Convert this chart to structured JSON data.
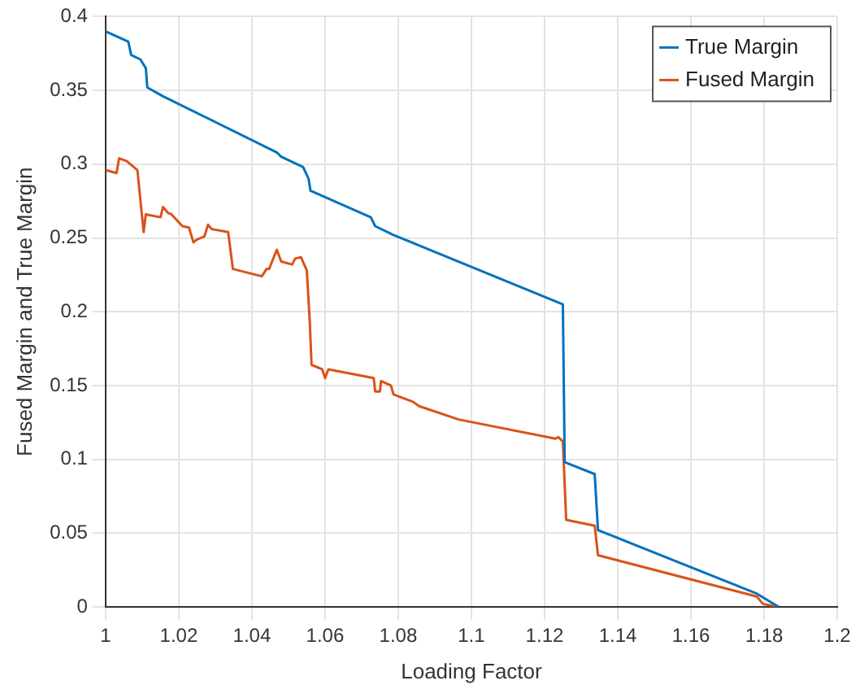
{
  "chart_data": {
    "type": "line",
    "xlabel": "Loading Factor",
    "ylabel": "Fused Margin and True Margin",
    "xlim": [
      1,
      1.2
    ],
    "ylim": [
      0,
      0.4
    ],
    "xticks": [
      1,
      1.02,
      1.04,
      1.06,
      1.08,
      1.1,
      1.12,
      1.14,
      1.16,
      1.18,
      1.2
    ],
    "yticks": [
      0,
      0.05,
      0.1,
      0.15,
      0.2,
      0.25,
      0.3,
      0.35,
      0.4
    ],
    "grid": true,
    "legend": "top right",
    "marker": "none",
    "line_style": "solid",
    "series": [
      {
        "name": "True Margin",
        "color": "#0072bd",
        "x": [
          1,
          1.0062,
          1.007,
          1.0095,
          1.011,
          1.0114,
          1.0157,
          1.0468,
          1.048,
          1.054,
          1.0555,
          1.056,
          1.0725,
          1.0737,
          1.0787,
          1.125,
          1.1255,
          1.1337,
          1.1346,
          1.178,
          1.184
        ],
        "values": [
          0.39,
          0.383,
          0.374,
          0.371,
          0.365,
          0.352,
          0.346,
          0.308,
          0.305,
          0.298,
          0.29,
          0.282,
          0.264,
          0.258,
          0.252,
          0.205,
          0.098,
          0.09,
          0.052,
          0.009,
          0
        ]
      },
      {
        "name": "Fused Margin",
        "color": "#d95319",
        "x": [
          1,
          1.003,
          1.0037,
          1.0058,
          1.0087,
          1.0095,
          1.0104,
          1.011,
          1.015,
          1.0157,
          1.017,
          1.018,
          1.021,
          1.0228,
          1.024,
          1.025,
          1.027,
          1.028,
          1.029,
          1.0335,
          1.0348,
          1.0427,
          1.044,
          1.0447,
          1.0468,
          1.048,
          1.051,
          1.0518,
          1.0534,
          1.055,
          1.0558,
          1.0563,
          1.0592,
          1.06,
          1.0609,
          1.0733,
          1.0737,
          1.075,
          1.0753,
          1.078,
          1.0787,
          1.084,
          1.0857,
          1.0965,
          1.123,
          1.1238,
          1.125,
          1.1259,
          1.1337,
          1.1346,
          1.178,
          1.1797,
          1.184
        ],
        "values": [
          0.296,
          0.294,
          0.304,
          0.302,
          0.296,
          0.276,
          0.254,
          0.266,
          0.264,
          0.271,
          0.267,
          0.266,
          0.258,
          0.257,
          0.247,
          0.249,
          0.251,
          0.259,
          0.256,
          0.254,
          0.229,
          0.224,
          0.229,
          0.229,
          0.242,
          0.234,
          0.232,
          0.236,
          0.237,
          0.228,
          0.194,
          0.164,
          0.161,
          0.155,
          0.161,
          0.155,
          0.146,
          0.146,
          0.153,
          0.15,
          0.144,
          0.139,
          0.136,
          0.127,
          0.114,
          0.115,
          0.112,
          0.059,
          0.055,
          0.035,
          0.007,
          0.002,
          0
        ]
      }
    ]
  }
}
